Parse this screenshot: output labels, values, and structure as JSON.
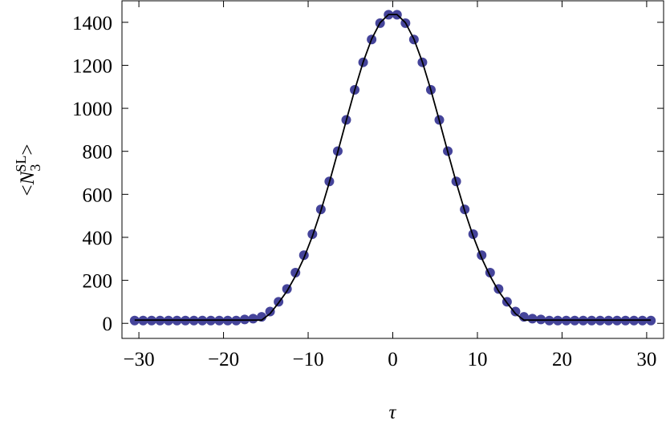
{
  "chart_data": {
    "type": "scatter",
    "xlabel": "τ",
    "ylabel": {
      "open": "<",
      "symbol": "N",
      "subscript": "3",
      "superscript": "SL",
      "close": ">"
    },
    "x": [
      -30.5,
      -29.5,
      -28.5,
      -27.5,
      -26.5,
      -25.5,
      -24.5,
      -23.5,
      -22.5,
      -21.5,
      -20.5,
      -19.5,
      -18.5,
      -17.5,
      -16.5,
      -15.5,
      -14.5,
      -13.5,
      -12.5,
      -11.5,
      -10.5,
      -9.5,
      -8.5,
      -7.5,
      -6.5,
      -5.5,
      -4.5,
      -3.5,
      -2.5,
      -1.5,
      -0.5,
      0.5,
      1.5,
      2.5,
      3.5,
      4.5,
      5.5,
      6.5,
      7.5,
      8.5,
      9.5,
      10.5,
      11.5,
      12.5,
      13.5,
      14.5,
      15.5,
      16.5,
      17.5,
      18.5,
      19.5,
      20.5,
      21.5,
      22.5,
      23.5,
      24.5,
      25.5,
      26.5,
      27.5,
      28.5,
      29.5,
      30.5
    ],
    "series": [
      {
        "mode": "markers",
        "color": "#45449a",
        "values": [
          13,
          13,
          13,
          13,
          13,
          13,
          13,
          13,
          13,
          13,
          13,
          13,
          13,
          18,
          22,
          30,
          55,
          100,
          160,
          236,
          317,
          415,
          530,
          660,
          801,
          946,
          1086,
          1214,
          1320,
          1396,
          1435,
          1435,
          1396,
          1320,
          1214,
          1086,
          946,
          801,
          660,
          530,
          415,
          317,
          236,
          160,
          100,
          55,
          30,
          22,
          18,
          13,
          13,
          13,
          13,
          13,
          13,
          13,
          13,
          13,
          13,
          13,
          13,
          13
        ]
      },
      {
        "mode": "line",
        "color": "#000000",
        "values": [
          15,
          15,
          15,
          15,
          15,
          15,
          15,
          15,
          15,
          15,
          15,
          15,
          15,
          15,
          15,
          15,
          45,
          95,
          150,
          220,
          304,
          405,
          523,
          655,
          797,
          943,
          1085,
          1215,
          1322,
          1398,
          1436,
          1436,
          1398,
          1322,
          1215,
          1085,
          943,
          797,
          655,
          523,
          405,
          304,
          220,
          150,
          95,
          45,
          15,
          15,
          15,
          15,
          15,
          15,
          15,
          15,
          15,
          15,
          15,
          15,
          15,
          15,
          15,
          15
        ]
      }
    ],
    "xlim": [
      -32,
      32
    ],
    "ylim": [
      -70,
      1500
    ],
    "xticks": [
      {
        "value": -30,
        "label": "−30"
      },
      {
        "value": -20,
        "label": "−20"
      },
      {
        "value": -10,
        "label": "−10"
      },
      0,
      10,
      20,
      30
    ],
    "yticks": [
      0,
      200,
      400,
      600,
      800,
      1000,
      1200,
      1400
    ]
  }
}
